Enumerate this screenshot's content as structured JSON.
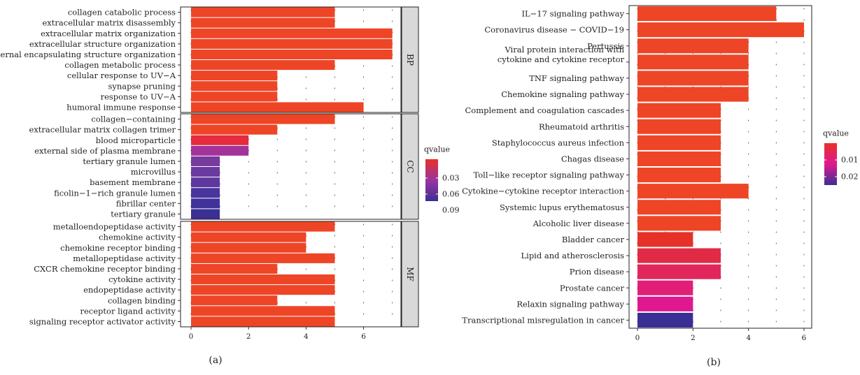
{
  "chart_data": [
    {
      "type": "bar",
      "orientation": "horizontal",
      "panel": "(a)",
      "x_range": [
        0,
        7.3
      ],
      "x_ticks": [
        "0",
        "2",
        "4",
        "6"
      ],
      "grid": "dotted",
      "legend": {
        "title": "qvalue",
        "position": "right",
        "ticks": [
          "0.03",
          "0.06",
          "0.09"
        ],
        "colors": [
          "#e8302a",
          "#9a35a0",
          "#3b2f93"
        ]
      },
      "facets": [
        {
          "name": "BP",
          "categories": [
            "collagen catabolic process",
            "extracellular matrix disassembly",
            "extracellular matrix organization",
            "extracellular structure organization",
            "external encapsulating structure organization",
            "collagen metabolic process",
            "cellular response to UV−A",
            "synapse pruning",
            "response to UV−A",
            "humoral immune response"
          ],
          "values": [
            5,
            5,
            7,
            7,
            7,
            5,
            3,
            3,
            3,
            6
          ],
          "colors": [
            "#ee4527",
            "#ee4527",
            "#ee4527",
            "#ee4527",
            "#ee4527",
            "#ee4527",
            "#ee4527",
            "#ee4527",
            "#ee4527",
            "#ee4527"
          ]
        },
        {
          "name": "CC",
          "categories": [
            "collagen−containing",
            "extracellular matrix collagen trimer",
            "blood microparticle",
            "external side of plasma membrane",
            "tertiary granule lumen",
            "microvillus",
            "basement membrane",
            "ficolin−1−rich granule lumen",
            "fibrillar center",
            "tertiary granule"
          ],
          "values": [
            5,
            3,
            2,
            2,
            1,
            1,
            1,
            1,
            1,
            1
          ],
          "colors": [
            "#ee4527",
            "#ee4527",
            "#e52b3d",
            "#a43399",
            "#783a9c",
            "#6b3aa0",
            "#5e389f",
            "#4a349d",
            "#3f3299",
            "#3a2f94"
          ]
        },
        {
          "name": "MF",
          "categories": [
            "metalloendopeptidase activity",
            "chemokine activity",
            "chemokine receptor binding",
            "metallopeptidase activity",
            "CXCR chemokine receptor binding",
            "cytokine activity",
            "endopeptidase activity",
            "collagen binding",
            "receptor ligand activity",
            "signaling receptor activator activity"
          ],
          "values": [
            5,
            4,
            4,
            5,
            3,
            5,
            5,
            3,
            5,
            5
          ],
          "colors": [
            "#ee4527",
            "#ee4527",
            "#ee4527",
            "#ee4527",
            "#ee4527",
            "#ee4527",
            "#ee4527",
            "#ee4527",
            "#ee4527",
            "#ee4527"
          ]
        }
      ]
    },
    {
      "type": "bar",
      "orientation": "horizontal",
      "panel": "(b)",
      "x_range": [
        0,
        6.3
      ],
      "x_ticks": [
        "0",
        "2",
        "4",
        "6"
      ],
      "grid": "dotted",
      "legend": {
        "title": "qvalue",
        "position": "right",
        "ticks": [
          "0.01",
          "0.02"
        ],
        "colors": [
          "#e8302a",
          "#e0188f",
          "#3b2f93"
        ]
      },
      "categories": [
        "IL−17 signaling pathway",
        "Coronavirus disease − COVID−19",
        "Pertussis",
        "Viral protein interaction with\ncytokine and cytokine receptor",
        "TNF signaling pathway",
        "Chemokine signaling pathway",
        "Complement and coagulation cascades",
        "Rheumatoid arthritis",
        "Staphylococcus aureus infection",
        "Chagas disease",
        "Toll−like receptor signaling pathway",
        "Cytokine−cytokine receptor interaction",
        "Systemic lupus erythematosus",
        "Alcoholic liver disease",
        "Bladder cancer",
        "Lipid and atherosclerosis",
        "Prion disease",
        "Prostate cancer",
        "Relaxin signaling pathway",
        "Transcriptional misregulation in cancer"
      ],
      "values": [
        5,
        6,
        4,
        4,
        4,
        4,
        3,
        3,
        3,
        3,
        3,
        4,
        3,
        3,
        2,
        3,
        3,
        2,
        2,
        2
      ],
      "colors": [
        "#ee4527",
        "#ee4527",
        "#ee4527",
        "#ee4527",
        "#ee4527",
        "#ee4527",
        "#ee4527",
        "#ee4527",
        "#ee4527",
        "#ee4527",
        "#ee4527",
        "#ee4527",
        "#ee4527",
        "#ee4527",
        "#e63028",
        "#e12a45",
        "#e1265c",
        "#e21f78",
        "#e0188f",
        "#3a2f94"
      ]
    }
  ]
}
